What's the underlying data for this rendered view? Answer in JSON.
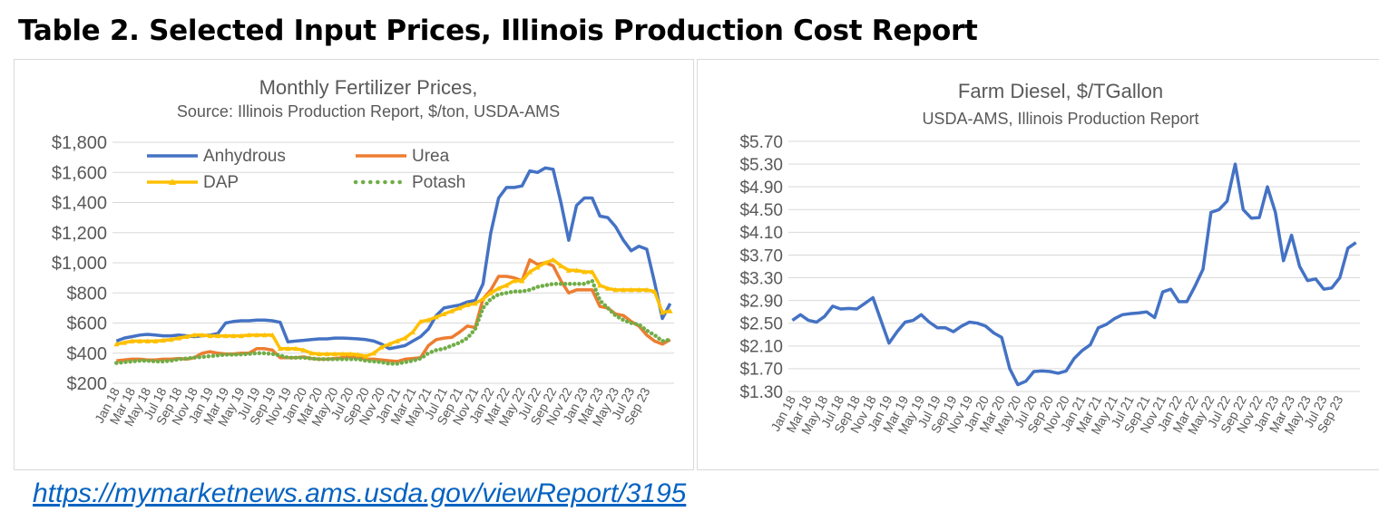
{
  "page": {
    "title": "Table 2. Selected Input Prices, Illinois Production Cost Report",
    "link_text": "https://mymarketnews.ams.usda.gov/viewReport/3195"
  },
  "chart_data": [
    {
      "type": "line",
      "title": "Monthly Fertilizer Prices,",
      "subtitle": "Source: Illinois Production Report, $/ton, USDA-AMS",
      "ylim": [
        200,
        1800
      ],
      "yticks": [
        "$200",
        "$400",
        "$600",
        "$800",
        "$1,000",
        "$1,200",
        "$1,400",
        "$1,600",
        "$1,800"
      ],
      "xtick_labels": [
        "Jan 18",
        "Mar 18",
        "May 18",
        "Jul 18",
        "Sep 18",
        "Nov 18",
        "Jan 19",
        "Mar 19",
        "May 19",
        "Jul 19",
        "Sep 19",
        "Nov 19",
        "Jan 20",
        "Mar 20",
        "May 20",
        "Jul 20",
        "Sep 20",
        "Nov 20",
        "Jan 21",
        "Mar 21",
        "May 21",
        "Jul 21",
        "Sep 21",
        "Nov 21",
        "Jan 22",
        "Mar 22",
        "May 22",
        "Jul 22",
        "Sep 22",
        "Nov 22",
        "Jan 23",
        "Mar 23",
        "May 23",
        "Jul 23",
        "Sep 23"
      ],
      "grid": true,
      "legend_position": "top-left",
      "x_start": "Jan 18",
      "series": [
        {
          "name": "Anhydrous",
          "color": "#4472c4",
          "marker": "none",
          "values": [
            480,
            500,
            510,
            520,
            525,
            520,
            515,
            515,
            520,
            515,
            510,
            515,
            520,
            530,
            600,
            610,
            615,
            615,
            620,
            620,
            615,
            605,
            475,
            480,
            485,
            490,
            495,
            495,
            500,
            500,
            498,
            495,
            490,
            480,
            460,
            430,
            440,
            450,
            480,
            510,
            560,
            650,
            700,
            710,
            720,
            740,
            750,
            860,
            1200,
            1430,
            1500,
            1500,
            1510,
            1610,
            1600,
            1630,
            1620,
            1400,
            1150,
            1380,
            1430,
            1430,
            1310,
            1300,
            1240,
            1150,
            1080,
            1110,
            1090,
            870,
            630,
            730
          ]
        },
        {
          "name": "Urea",
          "color": "#ed7d31",
          "marker": "none",
          "values": [
            350,
            355,
            360,
            360,
            355,
            355,
            360,
            360,
            365,
            360,
            370,
            400,
            410,
            400,
            395,
            395,
            400,
            400,
            430,
            430,
            420,
            370,
            370,
            370,
            375,
            365,
            360,
            360,
            365,
            370,
            375,
            370,
            360,
            360,
            355,
            350,
            345,
            360,
            365,
            370,
            450,
            490,
            500,
            505,
            540,
            580,
            570,
            760,
            820,
            910,
            910,
            900,
            880,
            1020,
            990,
            1000,
            980,
            880,
            800,
            820,
            820,
            820,
            710,
            700,
            660,
            650,
            610,
            580,
            520,
            480,
            460,
            490
          ]
        },
        {
          "name": "DAP",
          "color": "#ffc000",
          "marker": "triangle",
          "values": [
            460,
            470,
            480,
            480,
            480,
            480,
            485,
            490,
            500,
            510,
            520,
            520,
            515,
            515,
            515,
            515,
            515,
            520,
            520,
            520,
            520,
            430,
            430,
            430,
            420,
            400,
            395,
            395,
            395,
            395,
            395,
            390,
            380,
            400,
            440,
            460,
            480,
            500,
            540,
            610,
            620,
            640,
            660,
            680,
            700,
            720,
            730,
            760,
            800,
            830,
            850,
            880,
            880,
            940,
            970,
            1000,
            1020,
            980,
            950,
            950,
            940,
            940,
            850,
            830,
            820,
            820,
            820,
            820,
            820,
            810,
            670,
            680
          ]
        },
        {
          "name": "Potash",
          "color": "#70ad47",
          "marker": "dots",
          "values": [
            335,
            340,
            345,
            350,
            350,
            345,
            345,
            350,
            360,
            365,
            370,
            375,
            380,
            385,
            390,
            390,
            392,
            395,
            400,
            400,
            395,
            385,
            370,
            370,
            370,
            365,
            360,
            360,
            360,
            360,
            360,
            360,
            350,
            345,
            340,
            330,
            330,
            340,
            350,
            365,
            400,
            420,
            430,
            450,
            470,
            500,
            560,
            700,
            760,
            790,
            800,
            810,
            810,
            820,
            840,
            850,
            860,
            860,
            860,
            860,
            860,
            880,
            750,
            700,
            650,
            620,
            600,
            590,
            550,
            520,
            480,
            490
          ]
        }
      ]
    },
    {
      "type": "line",
      "title": "Farm Diesel, $/TGallon",
      "subtitle": "USDA-AMS, Illinois Production Report",
      "ylim": [
        1.3,
        5.7
      ],
      "yticks": [
        "$1.30",
        "$1.70",
        "$2.10",
        "$2.50",
        "$2.90",
        "$3.30",
        "$3.70",
        "$4.10",
        "$4.50",
        "$4.90",
        "$5.30",
        "$5.70"
      ],
      "xtick_labels": [
        "Jan 18",
        "Mar 18",
        "May 18",
        "Jul 18",
        "Sep 18",
        "Nov 18",
        "Jan 19",
        "Mar 19",
        "May 19",
        "Jul 19",
        "Sep 19",
        "Nov 19",
        "Jan 20",
        "Mar 20",
        "May 20",
        "Jul 20",
        "Sep 20",
        "Nov 20",
        "Jan 21",
        "Mar 21",
        "May 21",
        "Jul 21",
        "Sep 21",
        "Nov 21",
        "Jan 22",
        "Mar 22",
        "May 22",
        "Jul 22",
        "Sep 22",
        "Nov 22",
        "Jan 23",
        "Mar 23",
        "May 23",
        "Jul 23",
        "Sep 23"
      ],
      "grid": true,
      "x_start": "Jan 18",
      "series": [
        {
          "name": "",
          "color": "#4472c4",
          "values": [
            2.55,
            2.65,
            2.55,
            2.52,
            2.62,
            2.8,
            2.75,
            2.76,
            2.75,
            2.85,
            2.95,
            2.55,
            2.15,
            2.35,
            2.52,
            2.55,
            2.65,
            2.52,
            2.42,
            2.42,
            2.35,
            2.45,
            2.52,
            2.5,
            2.45,
            2.33,
            2.25,
            1.7,
            1.42,
            1.48,
            1.65,
            1.66,
            1.65,
            1.62,
            1.66,
            1.88,
            2.02,
            2.12,
            2.42,
            2.48,
            2.58,
            2.65,
            2.67,
            2.68,
            2.7,
            2.6,
            3.05,
            3.1,
            2.88,
            2.88,
            3.15,
            3.45,
            4.45,
            4.5,
            4.65,
            5.3,
            4.5,
            4.35,
            4.36,
            4.9,
            4.45,
            3.6,
            4.05,
            3.5,
            3.25,
            3.28,
            3.1,
            3.12,
            3.3,
            3.82,
            3.92
          ]
        }
      ]
    }
  ]
}
